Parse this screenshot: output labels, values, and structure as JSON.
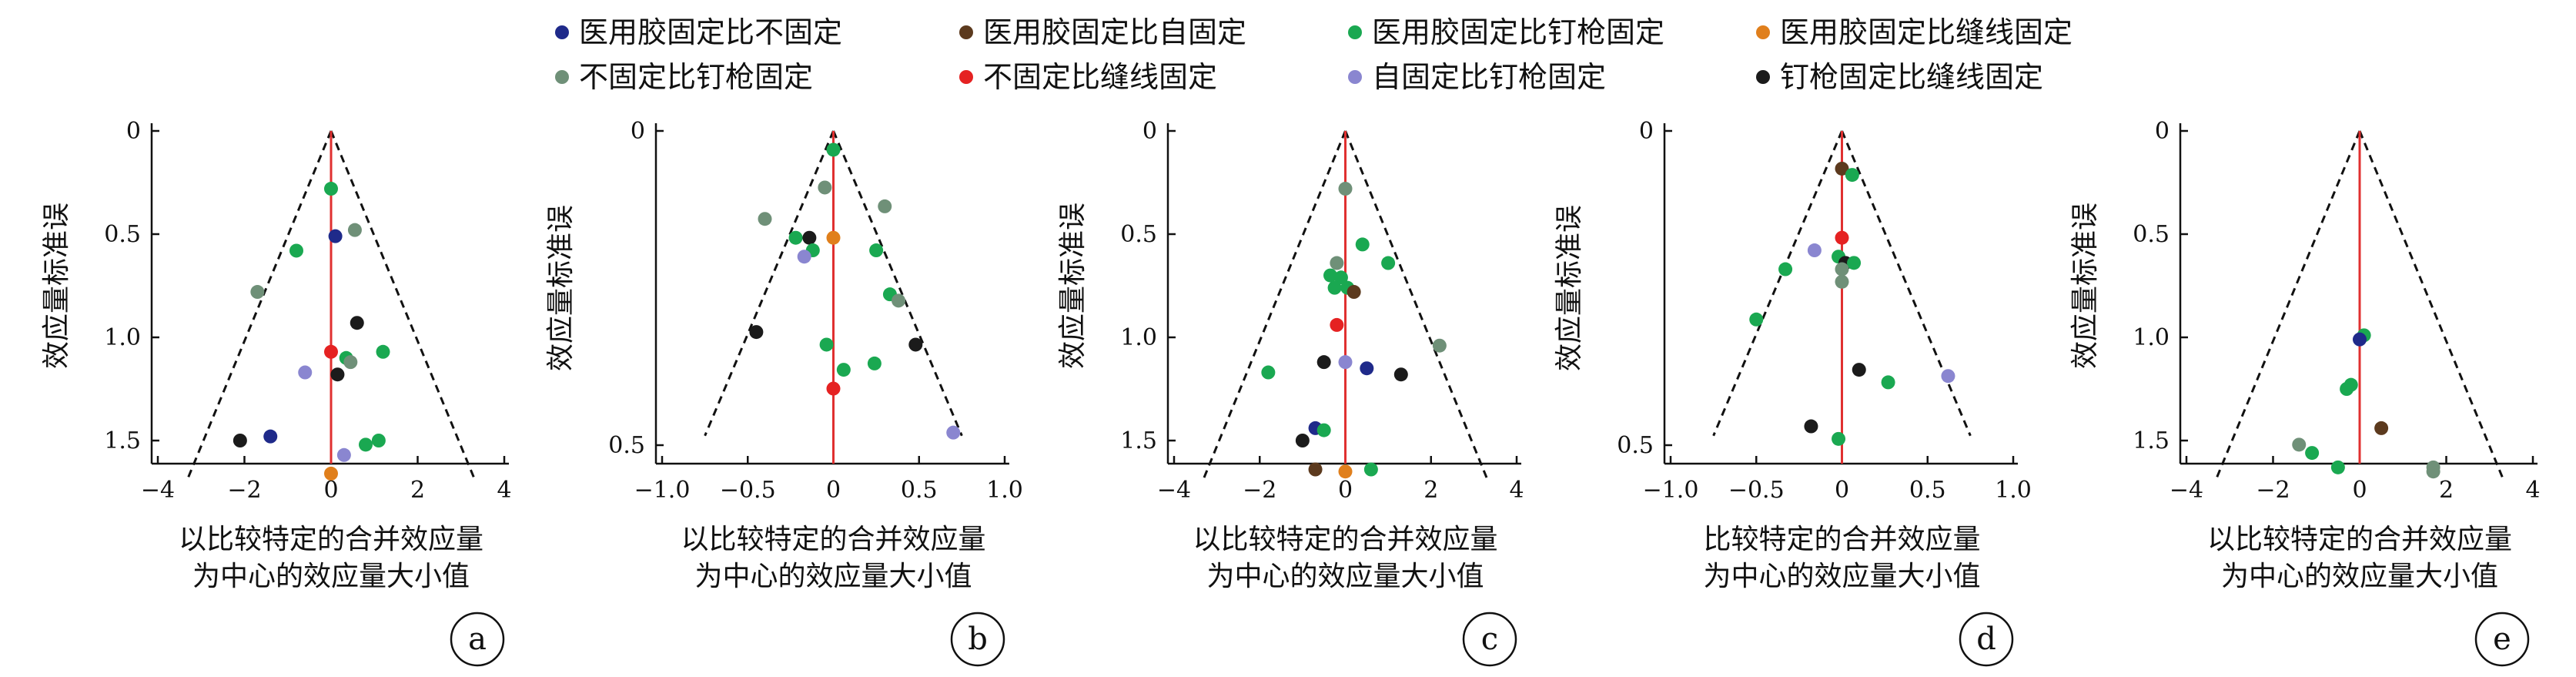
{
  "legend": {
    "items": [
      {
        "label": "医用胶固定比不固定",
        "color": "#1f2a8a"
      },
      {
        "label": "医用胶固定比自固定",
        "color": "#5c3a1e"
      },
      {
        "label": "医用胶固定比钉枪固定",
        "color": "#1aa851"
      },
      {
        "label": "医用胶固定比缝线固定",
        "color": "#e07f1c"
      },
      {
        "label": "不固定比钉枪固定",
        "color": "#6f9078"
      },
      {
        "label": "不固定比缝线固定",
        "color": "#e52222"
      },
      {
        "label": "自固定比钉枪固定",
        "color": "#8a86d0"
      },
      {
        "label": "钉枪固定比缝线固定",
        "color": "#1b1b1b"
      }
    ]
  },
  "chart_data": [
    {
      "type": "scatter",
      "panel": "a",
      "xlabel": [
        "以比较特定的合并效应量",
        "为中心的效应量大小值"
      ],
      "ylabel": "效应量标准误",
      "xlim": [
        -4,
        4
      ],
      "ylim": [
        1.7,
        0
      ],
      "xticks": [
        -4,
        -2,
        0,
        2,
        4
      ],
      "yticks": [
        0,
        0.5,
        1.0,
        1.5
      ],
      "ytick_labels": [
        "0",
        "0.5",
        "1.0",
        "1.5"
      ],
      "funnel": {
        "center": 0,
        "se_max": 1.68,
        "half_width": 3.3
      },
      "points": [
        {
          "x": 0.0,
          "y": 0.28,
          "series": 2
        },
        {
          "x": 0.1,
          "y": 0.51,
          "series": 0
        },
        {
          "x": 0.55,
          "y": 0.48,
          "series": 4
        },
        {
          "x": -0.8,
          "y": 0.58,
          "series": 2
        },
        {
          "x": -1.7,
          "y": 0.78,
          "series": 4
        },
        {
          "x": 0.6,
          "y": 0.93,
          "series": 7
        },
        {
          "x": 1.2,
          "y": 1.07,
          "series": 2
        },
        {
          "x": 0.0,
          "y": 1.07,
          "series": 5
        },
        {
          "x": 0.35,
          "y": 1.1,
          "series": 2
        },
        {
          "x": 0.45,
          "y": 1.12,
          "series": 4
        },
        {
          "x": 0.15,
          "y": 1.18,
          "series": 7
        },
        {
          "x": -0.6,
          "y": 1.17,
          "series": 6
        },
        {
          "x": -1.4,
          "y": 1.48,
          "series": 0
        },
        {
          "x": -2.1,
          "y": 1.5,
          "series": 7
        },
        {
          "x": 0.8,
          "y": 1.52,
          "series": 2
        },
        {
          "x": 1.1,
          "y": 1.5,
          "series": 2
        },
        {
          "x": 0.3,
          "y": 1.57,
          "series": 6
        },
        {
          "x": 0.0,
          "y": 1.66,
          "series": 3
        }
      ]
    },
    {
      "type": "scatter",
      "panel": "b",
      "xlabel": [
        "以比较特定的合并效应量",
        "为中心的效应量大小值"
      ],
      "ylabel": "效应量标准误",
      "xlim": [
        -1.0,
        1.0
      ],
      "ylim": [
        0.5,
        0
      ],
      "xticks": [
        -1.0,
        -0.5,
        0,
        0.5,
        1.0
      ],
      "yticks": [
        0,
        0.5
      ],
      "ytick_labels": [
        "0",
        "0.5"
      ],
      "funnel": {
        "center": 0,
        "se_max": 0.485,
        "half_width": 0.75
      },
      "points": [
        {
          "x": 0.0,
          "y": 0.03,
          "series": 2
        },
        {
          "x": -0.05,
          "y": 0.09,
          "series": 4
        },
        {
          "x": 0.3,
          "y": 0.12,
          "series": 4
        },
        {
          "x": -0.4,
          "y": 0.14,
          "series": 4
        },
        {
          "x": -0.22,
          "y": 0.17,
          "series": 2
        },
        {
          "x": -0.14,
          "y": 0.17,
          "series": 7
        },
        {
          "x": -0.12,
          "y": 0.19,
          "series": 2
        },
        {
          "x": 0.0,
          "y": 0.17,
          "series": 3
        },
        {
          "x": -0.17,
          "y": 0.2,
          "series": 6
        },
        {
          "x": 0.25,
          "y": 0.19,
          "series": 2
        },
        {
          "x": 0.33,
          "y": 0.26,
          "series": 2
        },
        {
          "x": 0.38,
          "y": 0.27,
          "series": 4
        },
        {
          "x": -0.45,
          "y": 0.32,
          "series": 7
        },
        {
          "x": 0.48,
          "y": 0.34,
          "series": 7
        },
        {
          "x": -0.04,
          "y": 0.34,
          "series": 2
        },
        {
          "x": 0.06,
          "y": 0.38,
          "series": 2
        },
        {
          "x": 0.24,
          "y": 0.37,
          "series": 2
        },
        {
          "x": 0.0,
          "y": 0.41,
          "series": 5
        },
        {
          "x": 0.7,
          "y": 0.48,
          "series": 6
        }
      ]
    },
    {
      "type": "scatter",
      "panel": "c",
      "xlabel": [
        "以比较特定的合并效应量",
        "为中心的效应量大小值"
      ],
      "ylabel": "效应量标准误",
      "xlim": [
        -4,
        4
      ],
      "ylim": [
        1.7,
        0
      ],
      "xticks": [
        -4,
        -2,
        0,
        2,
        4
      ],
      "yticks": [
        0,
        0.5,
        1.0,
        1.5
      ],
      "ytick_labels": [
        "0",
        "0.5",
        "1.0",
        "1.5"
      ],
      "funnel": {
        "center": 0,
        "se_max": 1.68,
        "half_width": 3.3
      },
      "points": [
        {
          "x": 0.0,
          "y": 0.28,
          "series": 4
        },
        {
          "x": 0.4,
          "y": 0.55,
          "series": 2
        },
        {
          "x": 1.0,
          "y": 0.64,
          "series": 2
        },
        {
          "x": -0.2,
          "y": 0.64,
          "series": 4
        },
        {
          "x": -0.35,
          "y": 0.7,
          "series": 2
        },
        {
          "x": -0.1,
          "y": 0.71,
          "series": 2
        },
        {
          "x": -0.25,
          "y": 0.76,
          "series": 2
        },
        {
          "x": 0.05,
          "y": 0.76,
          "series": 2
        },
        {
          "x": 0.2,
          "y": 0.78,
          "series": 1
        },
        {
          "x": -0.2,
          "y": 0.94,
          "series": 5
        },
        {
          "x": 2.2,
          "y": 1.04,
          "series": 4
        },
        {
          "x": -0.5,
          "y": 1.12,
          "series": 7
        },
        {
          "x": 0.0,
          "y": 1.12,
          "series": 6
        },
        {
          "x": 0.5,
          "y": 1.15,
          "series": 0
        },
        {
          "x": 1.3,
          "y": 1.18,
          "series": 7
        },
        {
          "x": -1.8,
          "y": 1.17,
          "series": 2
        },
        {
          "x": -0.7,
          "y": 1.44,
          "series": 0
        },
        {
          "x": -0.5,
          "y": 1.45,
          "series": 2
        },
        {
          "x": -1.0,
          "y": 1.5,
          "series": 7
        },
        {
          "x": -0.7,
          "y": 1.64,
          "series": 1
        },
        {
          "x": 0.0,
          "y": 1.65,
          "series": 3
        },
        {
          "x": 0.6,
          "y": 1.64,
          "series": 2
        }
      ]
    },
    {
      "type": "scatter",
      "panel": "d",
      "xlabel": [
        "比较特定的合并效应量",
        "为中心的效应量大小值"
      ],
      "ylabel": "效应量标准误",
      "xlim": [
        -1.0,
        1.0
      ],
      "ylim": [
        0.5,
        0
      ],
      "xticks": [
        -1.0,
        -0.5,
        0,
        0.5,
        1.0
      ],
      "yticks": [
        0,
        0.5
      ],
      "ytick_labels": [
        "0",
        "0.5"
      ],
      "funnel": {
        "center": 0,
        "se_max": 0.485,
        "half_width": 0.75
      },
      "points": [
        {
          "x": 0.0,
          "y": 0.06,
          "series": 1
        },
        {
          "x": 0.06,
          "y": 0.07,
          "series": 2
        },
        {
          "x": 0.0,
          "y": 0.17,
          "series": 5
        },
        {
          "x": -0.16,
          "y": 0.19,
          "series": 6
        },
        {
          "x": -0.02,
          "y": 0.2,
          "series": 2
        },
        {
          "x": 0.02,
          "y": 0.21,
          "series": 7
        },
        {
          "x": 0.07,
          "y": 0.21,
          "series": 2
        },
        {
          "x": -0.33,
          "y": 0.22,
          "series": 2
        },
        {
          "x": 0.0,
          "y": 0.22,
          "series": 4
        },
        {
          "x": 0.0,
          "y": 0.24,
          "series": 4
        },
        {
          "x": -0.5,
          "y": 0.3,
          "series": 2
        },
        {
          "x": 0.1,
          "y": 0.38,
          "series": 7
        },
        {
          "x": 0.27,
          "y": 0.4,
          "series": 2
        },
        {
          "x": 0.62,
          "y": 0.39,
          "series": 6
        },
        {
          "x": -0.18,
          "y": 0.47,
          "series": 7
        },
        {
          "x": -0.02,
          "y": 0.49,
          "series": 2
        }
      ]
    },
    {
      "type": "scatter",
      "panel": "e",
      "xlabel": [
        "以比较特定的合并效应量",
        "为中心的效应量大小值"
      ],
      "ylabel": "效应量标准误",
      "xlim": [
        -4,
        4
      ],
      "ylim": [
        1.7,
        0
      ],
      "xticks": [
        -4,
        -2,
        0,
        2,
        4
      ],
      "yticks": [
        0,
        0.5,
        1.0,
        1.5
      ],
      "ytick_labels": [
        "0",
        "0.5",
        "1.0",
        "1.5"
      ],
      "funnel": {
        "center": 0,
        "se_max": 1.68,
        "half_width": 3.3
      },
      "points": [
        {
          "x": 0.1,
          "y": 0.99,
          "series": 2
        },
        {
          "x": 0.0,
          "y": 1.01,
          "series": 0
        },
        {
          "x": -0.2,
          "y": 1.23,
          "series": 2
        },
        {
          "x": -0.3,
          "y": 1.25,
          "series": 2
        },
        {
          "x": 0.5,
          "y": 1.44,
          "series": 1
        },
        {
          "x": -1.4,
          "y": 1.52,
          "series": 4
        },
        {
          "x": -1.1,
          "y": 1.56,
          "series": 2
        },
        {
          "x": -0.5,
          "y": 1.63,
          "series": 2
        },
        {
          "x": 1.7,
          "y": 1.63,
          "series": 4
        },
        {
          "x": 1.7,
          "y": 1.65,
          "series": 4
        }
      ]
    }
  ]
}
